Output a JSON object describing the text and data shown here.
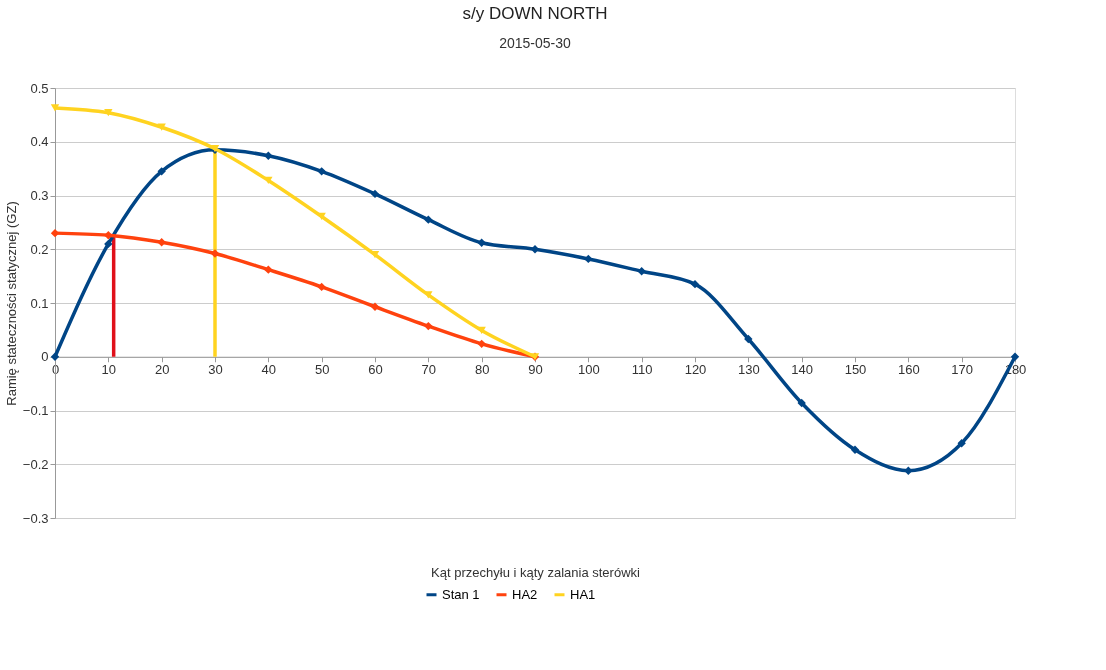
{
  "chart_data": {
    "type": "line",
    "title": "s/y DOWN NORTH",
    "subtitle": "2015-05-30",
    "xlabel": "Kąt przechyłu i kąty zalania sterówki",
    "ylabel": "Ramię stateczności statycznej (GZ)",
    "xlim": [
      0,
      180
    ],
    "xticks": [
      0,
      10,
      20,
      30,
      40,
      50,
      60,
      70,
      80,
      90,
      100,
      110,
      120,
      130,
      140,
      150,
      160,
      170,
      180
    ],
    "ylim": [
      -0.3,
      0.5
    ],
    "yticks": [
      -0.3,
      -0.2,
      -0.1,
      0,
      0.1,
      0.2,
      0.3,
      0.4,
      0.5
    ],
    "grid": "y",
    "legend": "bottom",
    "x": [
      0,
      10,
      20,
      30,
      40,
      50,
      60,
      70,
      80,
      90,
      100,
      110,
      120,
      130,
      140,
      150,
      160,
      170,
      180
    ],
    "series": [
      {
        "name": "Stan 1",
        "color": "#004586",
        "marker": "diamond",
        "line_style": "solid",
        "values": [
          0,
          0.21,
          0.345,
          0.385,
          0.374,
          0.345,
          0.303,
          0.255,
          0.212,
          0.2,
          0.182,
          0.159,
          0.135,
          0.033,
          -0.086,
          -0.173,
          -0.212,
          -0.161,
          0
        ]
      },
      {
        "name": "HA2",
        "color": "#ff420e",
        "marker": "diamond",
        "line_style": "solid",
        "x": [
          0,
          10,
          20,
          30,
          40,
          50,
          60,
          70,
          80,
          90
        ],
        "values": [
          0.23,
          0.226,
          0.213,
          0.192,
          0.162,
          0.13,
          0.093,
          0.057,
          0.024,
          0
        ]
      },
      {
        "name": "HA1",
        "color": "#ffd320",
        "marker": "triangle",
        "line_style": "solid",
        "x": [
          0,
          10,
          20,
          30,
          40,
          50,
          60,
          70,
          80,
          90
        ],
        "values": [
          0.463,
          0.454,
          0.427,
          0.387,
          0.328,
          0.261,
          0.19,
          0.115,
          0.049,
          0
        ]
      },
      {
        "type": "line",
        "color": "#e0101a",
        "marker": "none",
        "line_style": "solid",
        "x": [
          11,
          11
        ],
        "values": [
          0,
          0.225
        ]
      },
      {
        "type": "line",
        "color": "#ffd320",
        "marker": "none",
        "line_style": "solid",
        "x": [
          30,
          30
        ],
        "values": [
          0,
          0.385
        ]
      }
    ]
  }
}
